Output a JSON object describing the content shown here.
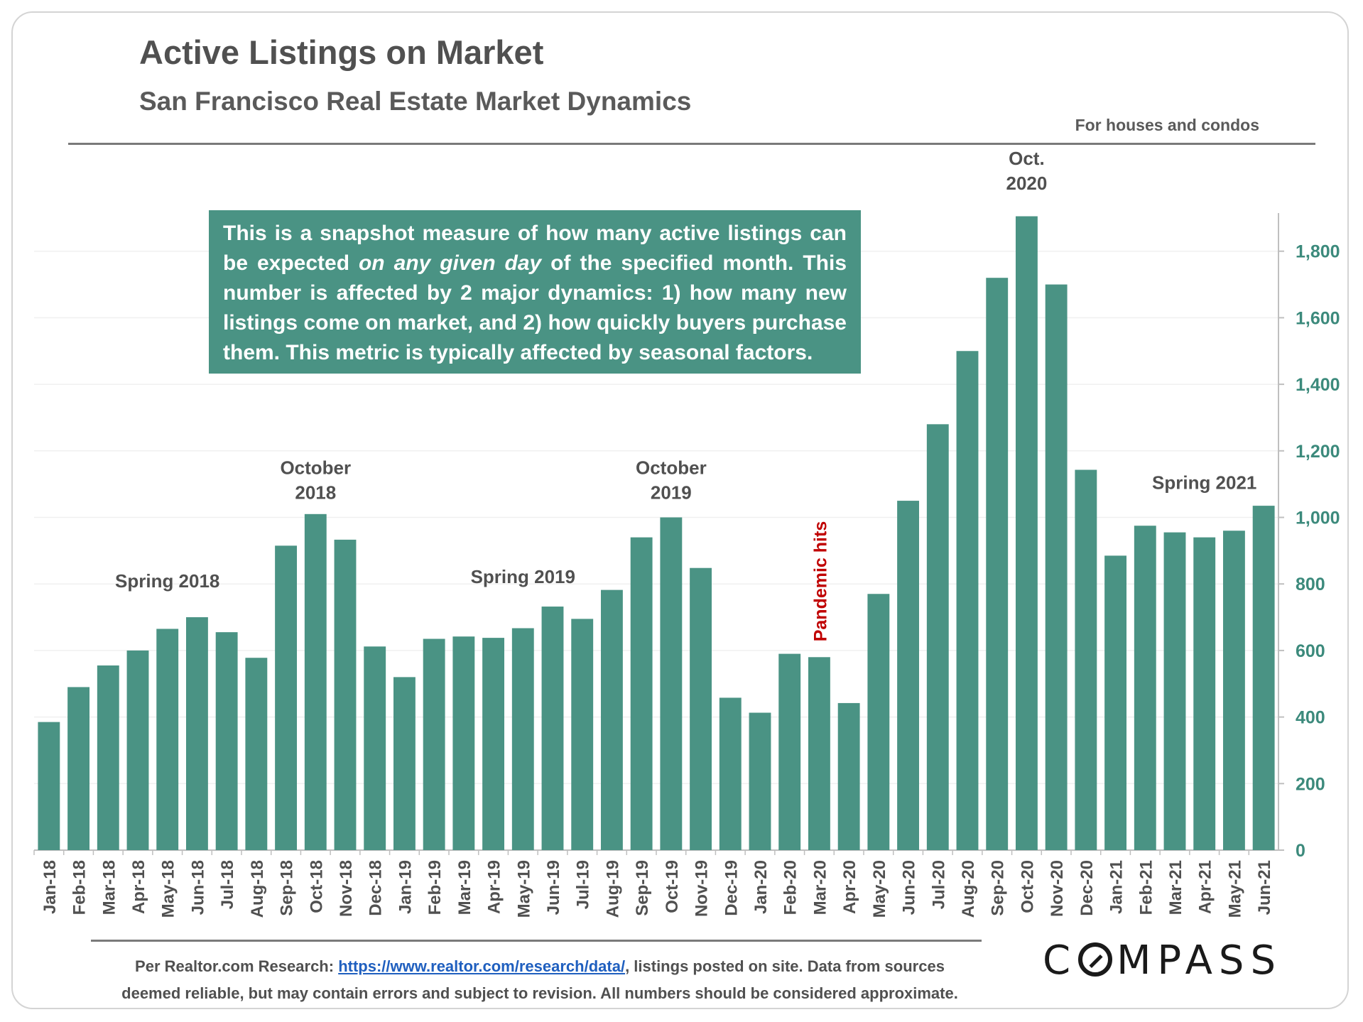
{
  "header": {
    "title": "Active Listings on Market",
    "subtitle": "San Francisco Real Estate Market Dynamics",
    "note": "For houses and condos"
  },
  "infobox": {
    "part1": "This is a snapshot measure of how many active listings can be expected ",
    "emphasis": "on any given day",
    "part2": " of the specified month. This number is affected by 2 major dynamics: 1) how many new listings come on market, and 2) how quickly buyers purchase them.  This metric is typically affected by seasonal factors."
  },
  "chart_data": {
    "type": "bar",
    "categories": [
      "Jan-18",
      "Feb-18",
      "Mar-18",
      "Apr-18",
      "May-18",
      "Jun-18",
      "Jul-18",
      "Aug-18",
      "Sep-18",
      "Oct-18",
      "Nov-18",
      "Dec-18",
      "Jan-19",
      "Feb-19",
      "Mar-19",
      "Apr-19",
      "May-19",
      "Jun-19",
      "Jul-19",
      "Aug-19",
      "Sep-19",
      "Oct-19",
      "Nov-19",
      "Dec-19",
      "Jan-20",
      "Feb-20",
      "Mar-20",
      "Apr-20",
      "May-20",
      "Jun-20",
      "Jul-20",
      "Aug-20",
      "Sep-20",
      "Oct-20",
      "Nov-20",
      "Dec-20",
      "Jan-21",
      "Feb-21",
      "Mar-21",
      "Apr-21",
      "May-21",
      "Jun-21"
    ],
    "values": [
      385,
      490,
      555,
      600,
      665,
      700,
      655,
      578,
      915,
      1010,
      933,
      612,
      520,
      635,
      642,
      638,
      667,
      732,
      695,
      782,
      940,
      1000,
      848,
      458,
      413,
      590,
      580,
      442,
      770,
      1050,
      1280,
      1500,
      1720,
      1905,
      1700,
      1143,
      885,
      975,
      955,
      940,
      960,
      1035
    ],
    "bar_color": "#4a9384",
    "yaxis": {
      "ticks": [
        "0",
        "200",
        "400",
        "600",
        "800",
        "1,000",
        "1,200",
        "1,400",
        "1,600",
        "1,800"
      ],
      "position": "right",
      "ylim": [
        0,
        1900
      ]
    },
    "grid": true,
    "annotations": [
      {
        "label_lines": [
          "Spring 2018"
        ],
        "index": 4,
        "value": 790
      },
      {
        "label_lines": [
          "October",
          "2018"
        ],
        "index": 9,
        "value": 1130
      },
      {
        "label_lines": [
          "Spring 2019"
        ],
        "index": 16,
        "value": 803
      },
      {
        "label_lines": [
          "October",
          "2019"
        ],
        "index": 21,
        "value": 1130
      },
      {
        "label_lines": [
          "Oct.",
          "2020"
        ],
        "index": 33,
        "value": 2060
      },
      {
        "label_lines": [
          "Spring 2021"
        ],
        "index": 39,
        "value": 1085
      }
    ],
    "event_marker": {
      "label": "Pandemic hits",
      "index": 26,
      "color": "#c00000"
    }
  },
  "footer": {
    "source_prefix": "Per Realtor.com Research:  ",
    "source_link": "https://www.realtor.com/research/data/",
    "source_line1_suffix": ", listings posted on site. Data from sources",
    "source_line2": "deemed reliable, but may contain errors and subject to revision. All numbers should be considered approximate.",
    "logo_c": "C",
    "logo_rest": "MPASS"
  }
}
